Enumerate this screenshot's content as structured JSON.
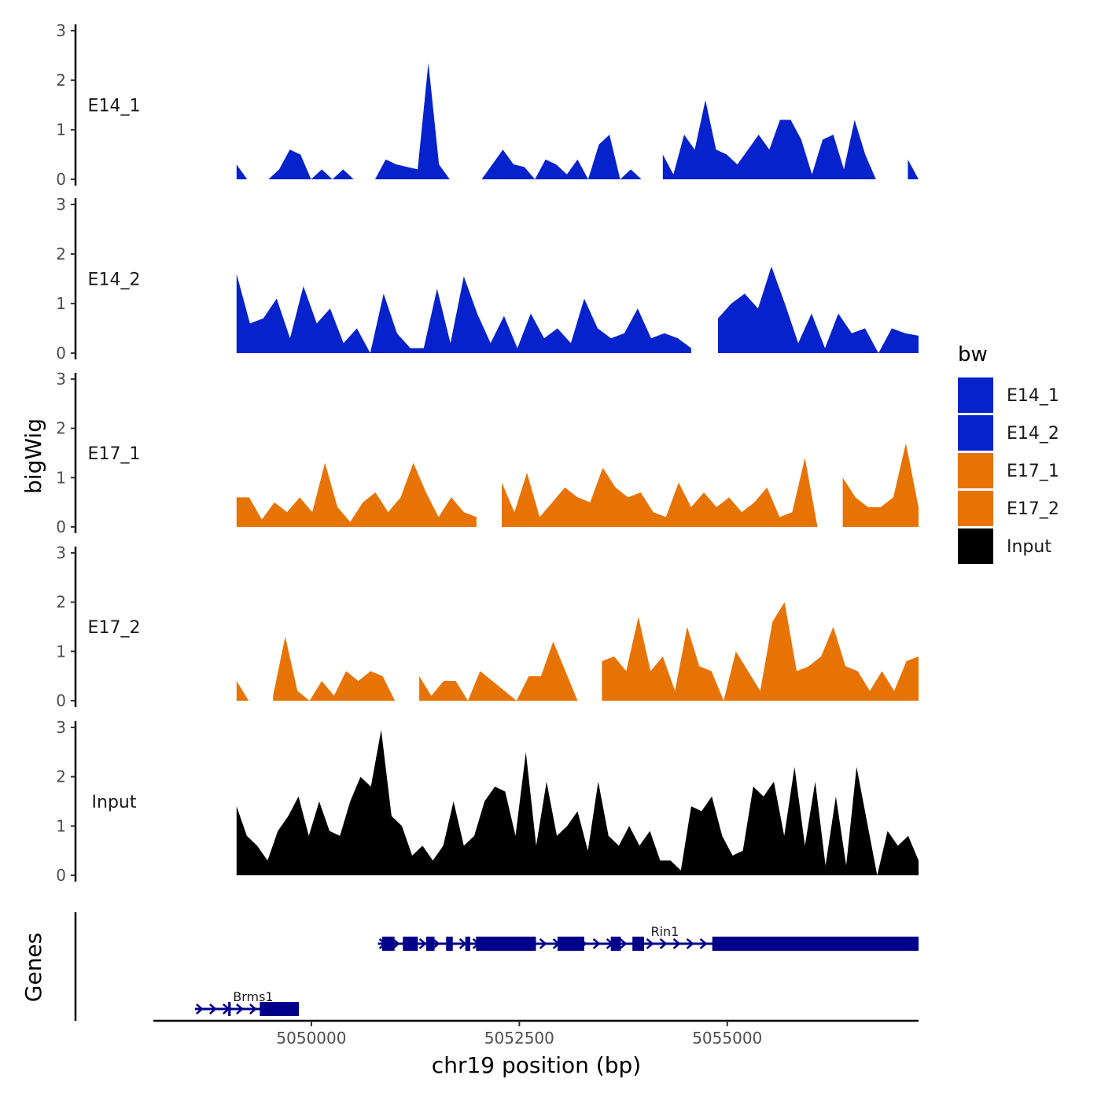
{
  "chart_data": {
    "type": "area",
    "title": "",
    "xlabel": "chr19 position (bp)",
    "ylabel": "bigWig",
    "genes_axis_label": "Genes",
    "xlim": [
      5048100,
      5057300
    ],
    "x_ticks": [
      5050000,
      5052500,
      5055000
    ],
    "x_tick_labels": [
      "5050000",
      "5052500",
      "5055000"
    ],
    "ylim": [
      0,
      3
    ],
    "y_ticks": [
      0,
      1,
      2,
      3
    ],
    "y_tick_labels": [
      "0",
      "1",
      "2",
      "3"
    ],
    "x_start": 5049100,
    "x_end": 5057300,
    "legend": {
      "title": "bw",
      "position": "right",
      "entries": [
        {
          "name": "E14_1",
          "color": "#0522CC"
        },
        {
          "name": "E14_2",
          "color": "#0522CC"
        },
        {
          "name": "E17_1",
          "color": "#E87305"
        },
        {
          "name": "E17_2",
          "color": "#E87305"
        },
        {
          "name": "Input",
          "color": "#000000"
        }
      ]
    },
    "series": [
      {
        "name": "E14_1",
        "color": "#0522CC",
        "values": [
          0.3,
          0,
          null,
          0,
          0.2,
          0.6,
          0.5,
          0,
          0.2,
          0,
          0.2,
          0,
          null,
          0,
          0.4,
          0.3,
          0.25,
          0.2,
          2.35,
          0.3,
          0,
          null,
          null,
          0,
          0.3,
          0.6,
          0.3,
          0.25,
          0,
          0.4,
          0.3,
          0.1,
          0.4,
          0,
          0.7,
          0.9,
          0,
          0.2,
          0,
          null,
          0.5,
          0.1,
          0.9,
          0.6,
          1.6,
          0.6,
          0.5,
          0.3,
          0.6,
          0.9,
          0.6,
          1.2,
          1.2,
          0.8,
          0.1,
          0.8,
          0.9,
          0.2,
          1.2,
          0.5,
          0,
          null,
          null,
          0.4,
          0
        ]
      },
      {
        "name": "E14_2",
        "color": "#0522CC",
        "values": [
          1.6,
          0.6,
          0.7,
          1.1,
          0.3,
          1.35,
          0.6,
          0.9,
          0.2,
          0.5,
          0,
          1.2,
          0.4,
          0.1,
          0.1,
          1.3,
          0.2,
          1.55,
          0.8,
          0.2,
          0.75,
          0.1,
          0.8,
          0.3,
          0.5,
          0.2,
          1.1,
          0.5,
          0.3,
          0.4,
          0.9,
          0.3,
          0.4,
          0.3,
          0.1,
          null,
          0.7,
          1.0,
          1.2,
          0.9,
          1.75,
          1.0,
          0.2,
          0.8,
          0.1,
          0.8,
          0.4,
          0.5,
          0,
          0.5,
          0.4,
          0.35
        ]
      },
      {
        "name": "E17_1",
        "color": "#E87305",
        "values": [
          0.6,
          0.6,
          0.15,
          0.5,
          0.3,
          0.6,
          0.3,
          1.3,
          0.4,
          0.1,
          0.5,
          0.7,
          0.3,
          0.6,
          1.3,
          0.7,
          0.2,
          0.6,
          0.3,
          0.2,
          null,
          0.9,
          0.3,
          1.1,
          0.2,
          0.5,
          0.8,
          0.6,
          0.5,
          1.2,
          0.8,
          0.6,
          0.7,
          0.3,
          0.2,
          0.9,
          0.4,
          0.7,
          0.4,
          0.6,
          0.3,
          0.5,
          0.8,
          0.2,
          0.3,
          1.4,
          0,
          null,
          1.0,
          0.6,
          0.4,
          0.4,
          0.6,
          1.7,
          0.4
        ]
      },
      {
        "name": "E17_2",
        "color": "#E87305",
        "values": [
          0.4,
          0,
          null,
          0.1,
          1.3,
          0.2,
          0,
          0.4,
          0.1,
          0.6,
          0.4,
          0.6,
          0.5,
          0,
          null,
          0.5,
          0.1,
          0.4,
          0.4,
          0,
          0.6,
          0.4,
          0.2,
          0,
          0.5,
          0.5,
          1.2,
          0.6,
          0,
          null,
          0.8,
          0.9,
          0.6,
          1.7,
          0.6,
          0.9,
          0.2,
          1.5,
          0.7,
          0.6,
          0,
          1.0,
          0.6,
          0.2,
          1.6,
          2.0,
          0.6,
          0.7,
          0.9,
          1.5,
          0.7,
          0.6,
          0.2,
          0.6,
          0.2,
          0.8,
          0.9
        ]
      },
      {
        "name": "Input",
        "color": "#000000",
        "values": [
          1.4,
          0.8,
          0.6,
          0.3,
          0.9,
          1.2,
          1.6,
          0.8,
          1.5,
          0.9,
          0.8,
          1.5,
          2.0,
          1.8,
          2.95,
          1.2,
          1.0,
          0.4,
          0.6,
          0.3,
          0.6,
          1.5,
          0.6,
          0.8,
          1.5,
          1.8,
          1.7,
          0.8,
          2.5,
          0.6,
          1.9,
          0.8,
          1.0,
          1.3,
          0.5,
          1.9,
          0.8,
          0.6,
          1.0,
          0.6,
          0.9,
          0.3,
          0.3,
          0.1,
          1.4,
          1.3,
          1.6,
          0.8,
          0.4,
          0.5,
          1.8,
          1.6,
          1.9,
          0.8,
          2.2,
          0.6,
          1.9,
          0.2,
          1.6,
          0.2,
          2.2,
          1.1,
          0,
          0.9,
          0.6,
          0.8,
          0.3
        ]
      }
    ],
    "genes": [
      {
        "name": "Rin1",
        "start": 5050800,
        "end": 5057300,
        "strand": "+",
        "exons": [
          [
            5050850,
            5051000
          ],
          [
            5051100,
            5051280
          ],
          [
            5051380,
            5051480
          ],
          [
            5051620,
            5051700
          ],
          [
            5051850,
            5051910
          ],
          [
            5051980,
            5052700
          ],
          [
            5052960,
            5053280
          ],
          [
            5053600,
            5053720
          ],
          [
            5053860,
            5054000
          ],
          [
            5054820,
            5057300
          ]
        ]
      },
      {
        "name": "Brms1",
        "start": 5048600,
        "end": 5049850,
        "strand": "+",
        "exons": [
          [
            5049000,
            5049030
          ],
          [
            5049380,
            5049850
          ]
        ]
      }
    ]
  }
}
